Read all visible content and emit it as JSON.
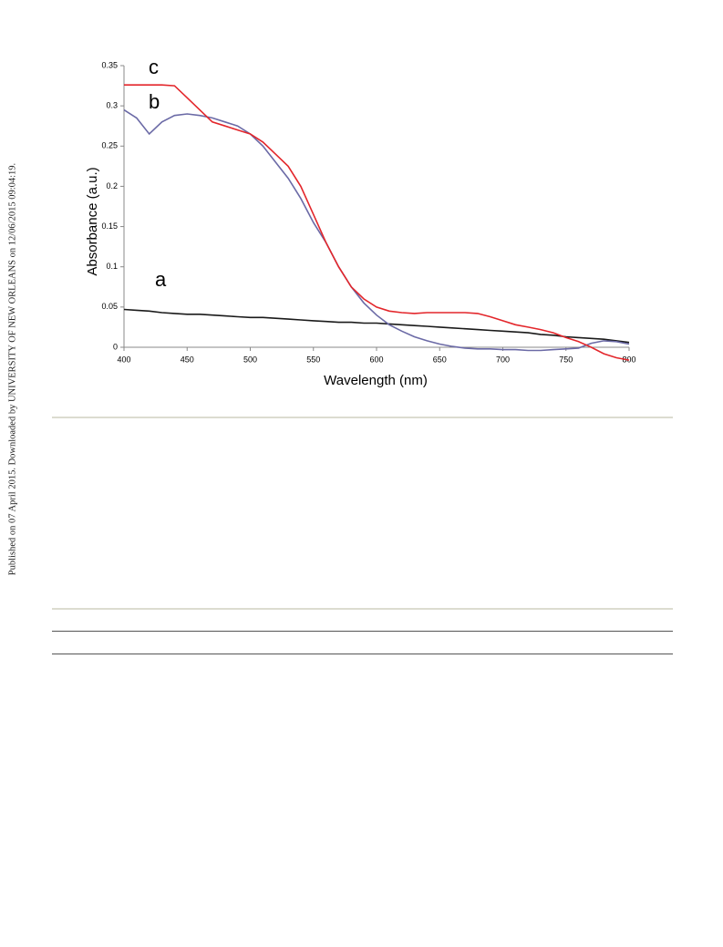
{
  "side_note": "Published on 07 April 2015. Downloaded by UNIVERSITY OF NEW ORLEANS on 12/06/2015 09:04:19.",
  "chart_data": {
    "type": "line",
    "x_label": "Wavelength (nm)",
    "y_label": "Absorbance (a.u.)",
    "x": [
      400,
      410,
      420,
      430,
      440,
      450,
      460,
      470,
      480,
      490,
      500,
      510,
      520,
      530,
      540,
      550,
      560,
      570,
      580,
      590,
      600,
      610,
      620,
      630,
      640,
      650,
      660,
      670,
      680,
      690,
      700,
      710,
      720,
      730,
      740,
      750,
      760,
      770,
      780,
      790,
      800
    ],
    "series": [
      {
        "name": "a",
        "color": "#1a1a1a",
        "values": [
          0.047,
          0.046,
          0.045,
          0.043,
          0.042,
          0.041,
          0.041,
          0.04,
          0.039,
          0.038,
          0.037,
          0.037,
          0.036,
          0.035,
          0.034,
          0.033,
          0.032,
          0.031,
          0.031,
          0.03,
          0.03,
          0.029,
          0.028,
          0.027,
          0.026,
          0.025,
          0.024,
          0.023,
          0.022,
          0.021,
          0.02,
          0.019,
          0.018,
          0.016,
          0.015,
          0.013,
          0.012,
          0.011,
          0.01,
          0.008,
          0.006
        ]
      },
      {
        "name": "b",
        "color": "#6b6aa6",
        "values": [
          0.295,
          0.285,
          0.265,
          0.28,
          0.288,
          0.29,
          0.288,
          0.285,
          0.28,
          0.275,
          0.265,
          0.25,
          0.23,
          0.21,
          0.185,
          0.155,
          0.13,
          0.1,
          0.075,
          0.055,
          0.04,
          0.028,
          0.02,
          0.013,
          0.008,
          0.004,
          0.001,
          -0.001,
          -0.002,
          -0.002,
          -0.003,
          -0.003,
          -0.004,
          -0.004,
          -0.003,
          -0.002,
          -0.001,
          0.005,
          0.008,
          0.007,
          0.004
        ]
      },
      {
        "name": "c",
        "color": "#e3262b",
        "values": [
          0.326,
          0.326,
          0.326,
          0.326,
          0.325,
          0.31,
          0.295,
          0.28,
          0.275,
          0.27,
          0.265,
          0.255,
          0.24,
          0.225,
          0.2,
          0.165,
          0.13,
          0.1,
          0.075,
          0.06,
          0.05,
          0.045,
          0.043,
          0.042,
          0.043,
          0.043,
          0.043,
          0.043,
          0.042,
          0.038,
          0.033,
          0.028,
          0.025,
          0.022,
          0.018,
          0.012,
          0.007,
          0.0,
          -0.008,
          -0.013,
          -0.016
        ]
      }
    ],
    "xlim": [
      400,
      800
    ],
    "xticks": [
      400,
      450,
      500,
      550,
      600,
      650,
      700,
      750,
      800
    ],
    "ylim": [
      0,
      0.35
    ],
    "yticks": [
      0,
      0.05,
      0.1,
      0.15,
      0.2,
      0.25,
      0.3,
      0.35
    ]
  }
}
